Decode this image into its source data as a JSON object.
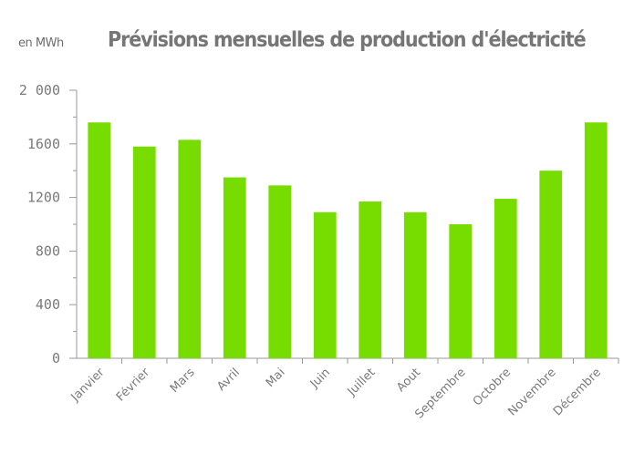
{
  "chart_data": {
    "type": "bar",
    "title": "Prévisions mensuelles de production d'électricité",
    "unit_label": "en MWh",
    "xlabel": "",
    "ylabel": "en MWh",
    "categories": [
      "Janvier",
      "Février",
      "Mars",
      "Avril",
      "Mai",
      "Juin",
      "Juillet",
      "Aout",
      "Septembre",
      "Octobre",
      "Novembre",
      "Décembre"
    ],
    "values": [
      1760,
      1580,
      1630,
      1350,
      1290,
      1090,
      1170,
      1090,
      1000,
      1190,
      1400,
      1760
    ],
    "ylim": [
      0,
      2000
    ],
    "yticks": [
      0,
      400,
      800,
      1200,
      1600,
      2000
    ],
    "ytick_labels": [
      "0",
      "400",
      "800",
      "1200",
      "1600",
      "2 000"
    ],
    "minor_ytick_step": 200,
    "grid": false,
    "legend": "none",
    "colors": {
      "bar": "#77dd00",
      "axis": "#9a9a9a",
      "text": "#7a7a7a"
    }
  }
}
